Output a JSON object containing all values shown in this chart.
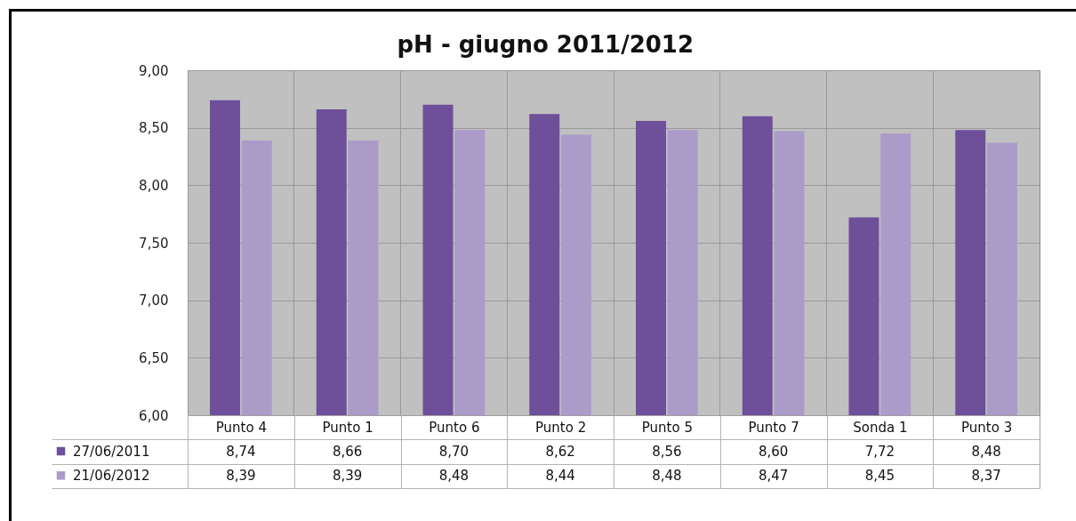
{
  "chart_data": {
    "type": "bar",
    "title": "pH - giugno 2011/2012",
    "categories": [
      "Punto 4",
      "Punto 1",
      "Punto 6",
      "Punto 2",
      "Punto 5",
      "Punto 7",
      "Sonda 1",
      "Punto 3"
    ],
    "series": [
      {
        "name": "27/06/2011",
        "color": "#6e4f9a",
        "values": [
          8.74,
          8.66,
          8.7,
          8.62,
          8.56,
          8.6,
          7.72,
          8.48
        ],
        "value_labels": [
          "8,74",
          "8,66",
          "8,70",
          "8,62",
          "8,56",
          "8,60",
          "7,72",
          "8,48"
        ]
      },
      {
        "name": "21/06/2012",
        "color": "#ab9bc9",
        "values": [
          8.39,
          8.39,
          8.48,
          8.44,
          8.48,
          8.47,
          8.45,
          8.37
        ],
        "value_labels": [
          "8,39",
          "8,39",
          "8,48",
          "8,44",
          "8,48",
          "8,47",
          "8,45",
          "8,37"
        ]
      }
    ],
    "ylim": [
      6,
      9
    ],
    "yticks": [
      {
        "value": 6,
        "label": "6,00"
      },
      {
        "value": 6.5,
        "label": "6,50"
      },
      {
        "value": 7,
        "label": "7,00"
      },
      {
        "value": 7.5,
        "label": "7,50"
      },
      {
        "value": 8,
        "label": "8,00"
      },
      {
        "value": 8.5,
        "label": "8,50"
      },
      {
        "value": 9,
        "label": "9,00"
      }
    ],
    "grid": true,
    "legend": "bottom left"
  }
}
